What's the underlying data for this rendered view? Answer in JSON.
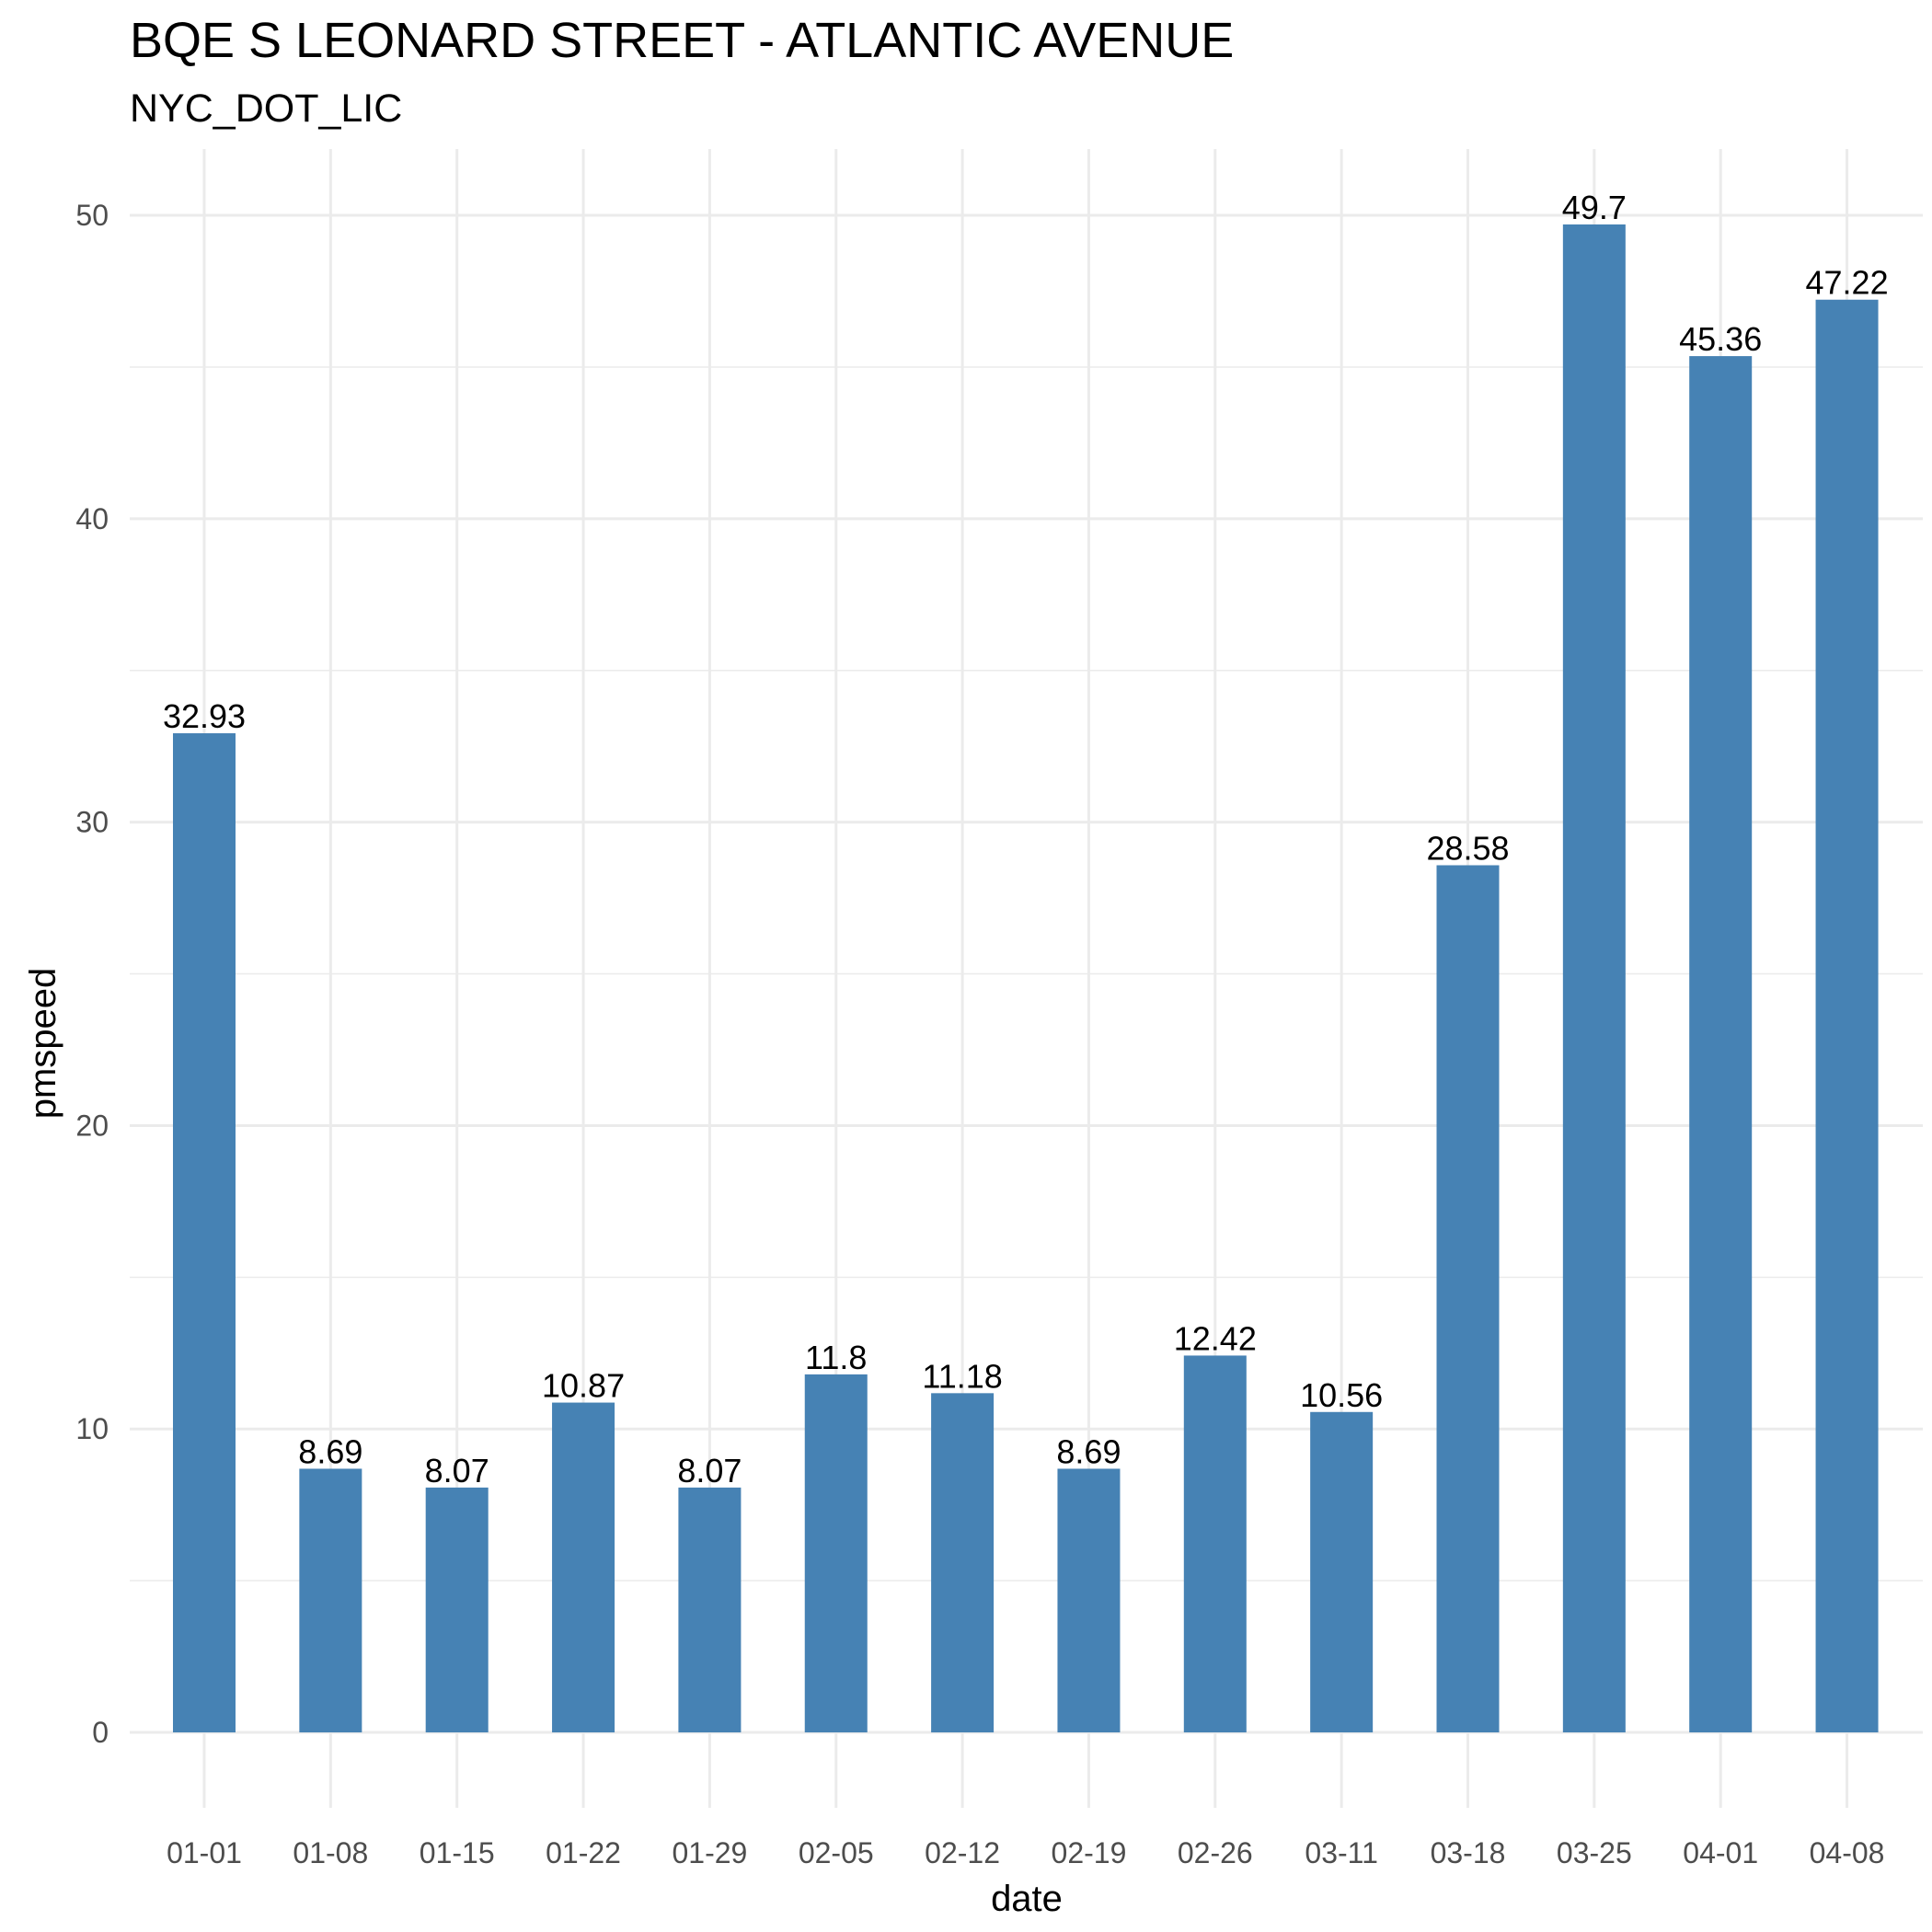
{
  "chart_data": {
    "type": "bar",
    "title": "BQE S LEONARD STREET - ATLANTIC AVENUE",
    "subtitle": "NYC_DOT_LIC",
    "xlabel": "date",
    "ylabel": "pmspeed",
    "categories": [
      "01-01",
      "01-08",
      "01-15",
      "01-22",
      "01-29",
      "02-05",
      "02-12",
      "02-19",
      "02-26",
      "03-11",
      "03-18",
      "03-25",
      "04-01",
      "04-08"
    ],
    "values": [
      32.93,
      8.69,
      8.07,
      10.87,
      8.07,
      11.8,
      11.18,
      8.69,
      12.42,
      10.56,
      28.58,
      49.7,
      45.36,
      47.22
    ],
    "data_labels": [
      "32.93",
      "8.69",
      "8.07",
      "10.87",
      "8.07",
      "11.8",
      "11.18",
      "8.69",
      "12.42",
      "10.56",
      "28.58",
      "49.7",
      "45.36",
      "47.22"
    ],
    "ylim": [
      -2.485,
      52.185
    ],
    "yticks": [
      0,
      10,
      20,
      30,
      40,
      50
    ],
    "grid": true,
    "legend": "none",
    "bar_color": "#4682b4"
  }
}
